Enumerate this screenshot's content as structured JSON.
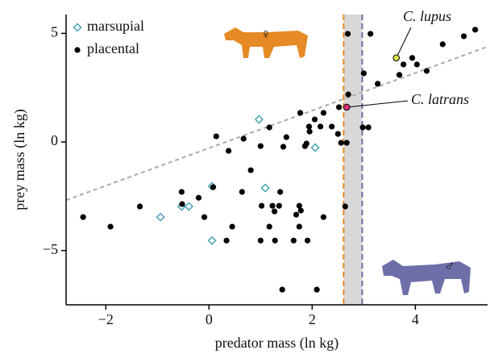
{
  "chart_data": {
    "type": "scatter",
    "x_label": "predator mass (ln kg)",
    "y_label": "prey mass (ln kg)",
    "xlim": [
      -2.77,
      5.4
    ],
    "ylim": [
      -7.5,
      5.87
    ],
    "xticks": [
      {
        "value": -2,
        "label": "−2"
      },
      0,
      2,
      4
    ],
    "yticks": [
      {
        "value": -5,
        "label": "−5"
      },
      0,
      5
    ],
    "legend": "upper left",
    "series": [
      {
        "name": "marsupial",
        "color": "#4aa3b5",
        "marker": "diamond",
        "x": [
          0.97,
          2.06,
          0.06,
          1.09,
          -0.39,
          -0.53,
          -0.94,
          0.06
        ],
        "y": [
          1.04,
          -0.26,
          -2.04,
          -2.12,
          -2.97,
          -2.97,
          -3.46,
          -4.54
        ]
      },
      {
        "name": "placental",
        "color": "#000000",
        "marker": "circle",
        "x": [
          3.13,
          2.69,
          5.16,
          4.94,
          4.53,
          3.94,
          3.77,
          4.03,
          4.22,
          3.69,
          3.27,
          3.0,
          2.7,
          2.52,
          2.22,
          1.77,
          2.05,
          1.94,
          2.16,
          2.38,
          2.98,
          3.09,
          2.5,
          2.56,
          2.67,
          1.95,
          1.89,
          1.86,
          1.5,
          1.44,
          1.0,
          0.14,
          0.38,
          0.67,
          1.17,
          0.81,
          0.08,
          -0.53,
          -0.52,
          -0.2,
          0.64,
          1.38,
          1.23,
          1.02,
          1.36,
          1.27,
          1.75,
          1.78,
          2.64,
          2.22,
          1.69,
          -0.09,
          0.45,
          1.17,
          1.75,
          -1.34,
          -2.44,
          -1.91,
          0.34,
          1.0,
          1.28,
          1.64,
          1.91,
          1.42,
          2.09
        ],
        "y": [
          4.98,
          4.98,
          5.17,
          4.87,
          4.5,
          3.87,
          3.57,
          3.57,
          3.27,
          3.09,
          2.68,
          3.16,
          2.19,
          1.6,
          1.34,
          1.34,
          1.04,
          0.71,
          0.71,
          0.71,
          0.67,
          0.67,
          0.37,
          -0.04,
          -0.04,
          0.48,
          -0.07,
          -0.19,
          0.22,
          -0.22,
          -0.19,
          0.26,
          -0.41,
          0.15,
          0.67,
          -1.3,
          -2.08,
          -2.3,
          -2.86,
          -2.57,
          -2.3,
          -2.3,
          -2.94,
          -2.94,
          -2.94,
          -3.2,
          -2.94,
          -3.16,
          -2.97,
          -3.46,
          -3.35,
          -3.46,
          -3.9,
          -3.9,
          -3.9,
          -2.97,
          -3.46,
          -3.9,
          -4.54,
          -4.54,
          -4.54,
          -4.54,
          -4.54,
          -6.8,
          -6.8
        ]
      }
    ],
    "highlights": [
      {
        "label": "C. lupus",
        "x": 3.63,
        "y": 3.87,
        "color": "#d7e04a"
      },
      {
        "label": "C. latrans",
        "x": 2.67,
        "y": 1.6,
        "color": "#e0307a"
      }
    ],
    "trend_line": {
      "x": [
        -2.77,
        5.4
      ],
      "y": [
        -2.68,
        4.39
      ],
      "color": "#aaaaaa"
    },
    "vlines": [
      {
        "x": 2.61,
        "color": "#e58a24"
      },
      {
        "x": 2.97,
        "color": "#6e6fa8"
      }
    ],
    "band": [
      2.61,
      2.97
    ],
    "symbols": [
      {
        "label": "♀",
        "color": "#e58a24"
      },
      {
        "label": "♂",
        "color": "#6e6fa8"
      }
    ]
  }
}
